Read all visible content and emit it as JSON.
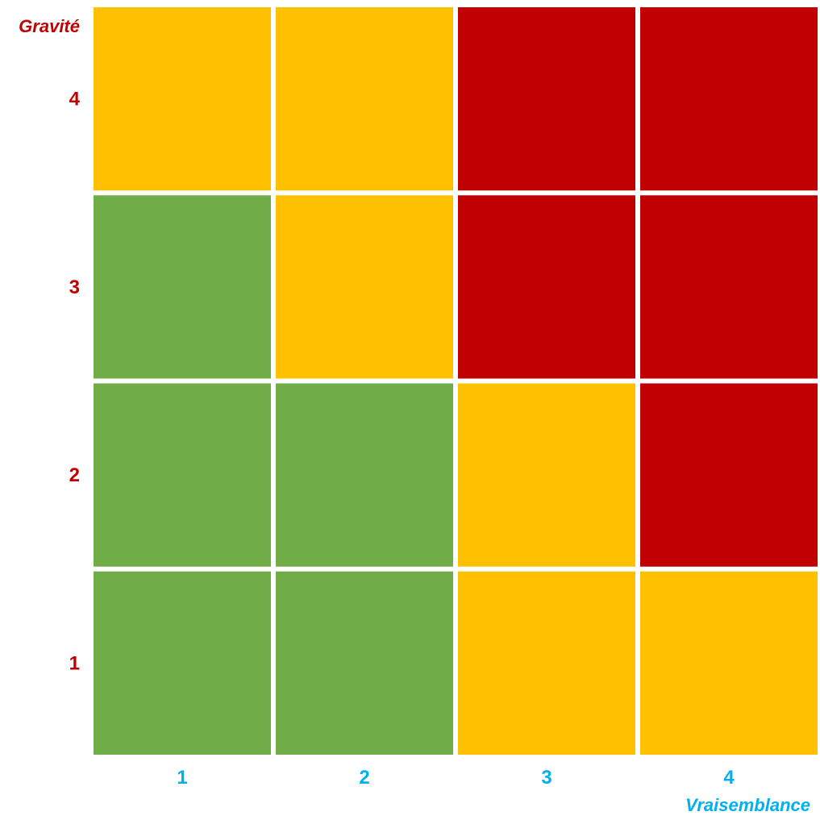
{
  "chart_data": {
    "type": "heatmap",
    "title": "",
    "xlabel": "Vraisemblance",
    "ylabel": "Gravité",
    "x": [
      "1",
      "2",
      "3",
      "4"
    ],
    "y": [
      "1",
      "2",
      "3",
      "4"
    ],
    "cells": [
      [
        1,
        1,
        2,
        2
      ],
      [
        1,
        1,
        2,
        3
      ],
      [
        1,
        2,
        3,
        3
      ],
      [
        2,
        2,
        3,
        3
      ]
    ],
    "level_colors": {
      "1": "#70ad47",
      "2": "#ffc000",
      "3": "#c00000"
    },
    "label_colors": {
      "y": "#c00000",
      "x": "#00b0f0"
    }
  }
}
